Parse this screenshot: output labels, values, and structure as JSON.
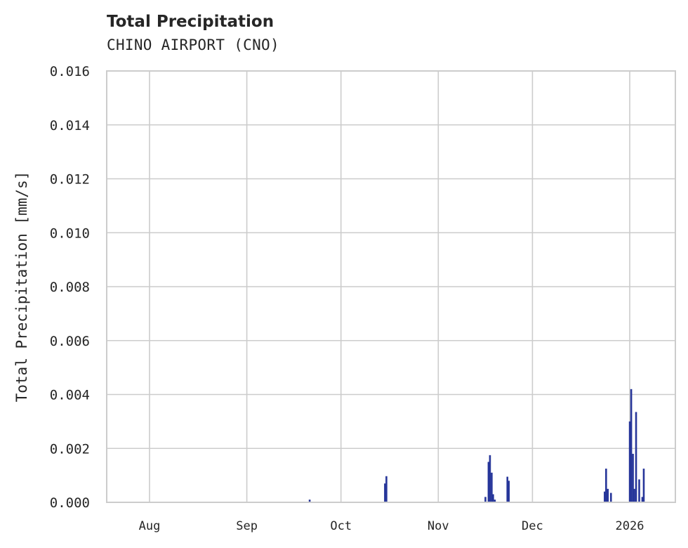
{
  "chart_data": {
    "type": "bar",
    "title": "Total Precipitation",
    "subtitle": "CHINO AIRPORT (CNO)",
    "xlabel": "",
    "ylabel": "Total Precipitation [mm/s]",
    "ylim": [
      0,
      0.016
    ],
    "yticks": [
      "0.000",
      "0.002",
      "0.004",
      "0.006",
      "0.008",
      "0.010",
      "0.012",
      "0.014",
      "0.016"
    ],
    "xticks": [
      "Aug",
      "Sep",
      "Oct",
      "Nov",
      "Dec",
      "2026"
    ],
    "grid": true,
    "legend": null,
    "color": "#27369a",
    "series": [
      {
        "name": "Total Precipitation",
        "points": [
          {
            "date": "2025-09-21",
            "value": 0.0001
          },
          {
            "date": "2025-10-15",
            "value": 0.0007
          },
          {
            "date": "2025-10-15",
            "value": 0.00097
          },
          {
            "date": "2025-11-16",
            "value": 0.0002
          },
          {
            "date": "2025-11-17",
            "value": 0.0015
          },
          {
            "date": "2025-11-17",
            "value": 0.00175
          },
          {
            "date": "2025-11-18",
            "value": 0.0011
          },
          {
            "date": "2025-11-18",
            "value": 0.0003
          },
          {
            "date": "2025-11-19",
            "value": 0.0001
          },
          {
            "date": "2025-11-23",
            "value": 0.00095
          },
          {
            "date": "2025-11-23",
            "value": 0.0008
          },
          {
            "date": "2025-12-24",
            "value": 0.0004
          },
          {
            "date": "2025-12-24",
            "value": 0.00125
          },
          {
            "date": "2025-12-25",
            "value": 0.0005
          },
          {
            "date": "2025-12-26",
            "value": 0.00035
          },
          {
            "date": "2026-01-01",
            "value": 0.003
          },
          {
            "date": "2026-01-01",
            "value": 0.0042
          },
          {
            "date": "2026-01-02",
            "value": 0.0018
          },
          {
            "date": "2026-01-02",
            "value": 0.0005
          },
          {
            "date": "2026-01-03",
            "value": 0.00335
          },
          {
            "date": "2026-01-04",
            "value": 0.00085
          },
          {
            "date": "2026-01-05",
            "value": 0.0002
          },
          {
            "date": "2026-01-05",
            "value": 0.00125
          }
        ]
      }
    ]
  }
}
